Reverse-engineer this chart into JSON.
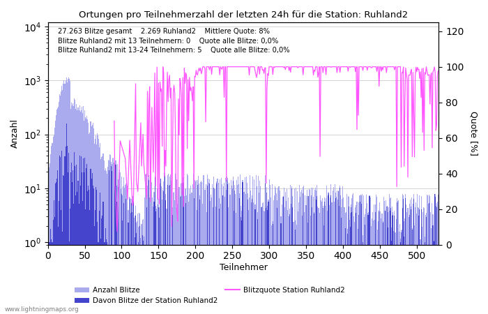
{
  "title": "Ortungen pro Teilnehmerzahl der letzten 24h für die Station: Ruhland2",
  "xlabel": "Teilnehmer",
  "ylabel_left": "Anzahl",
  "ylabel_right": "Quote [%]",
  "annotation_line1": "27.263 Blitze gesamt    2.269 Ruhland2    Mittlere Quote: 8%",
  "annotation_line2": "Blitze Ruhland2 mit 13 Teilnehmern: 0    Quote alle Blitze: 0,0%",
  "annotation_line3": "Blitze Ruhland2 mit 13-24 Teilnehmern: 5    Quote alle Blitze: 0,0%",
  "watermark": "www.lightningmaps.org",
  "xlim": [
    0,
    530
  ],
  "ylim_log_min": 0.9,
  "ylim_log_max": 12000,
  "ylim_right": [
    0,
    125
  ],
  "right_yticks": [
    0,
    20,
    40,
    60,
    80,
    100,
    120
  ],
  "color_bar_total": "#aaaaee",
  "color_bar_station": "#4444cc",
  "color_line": "#ff55ff",
  "figsize": [
    7.0,
    4.5
  ],
  "dpi": 100
}
